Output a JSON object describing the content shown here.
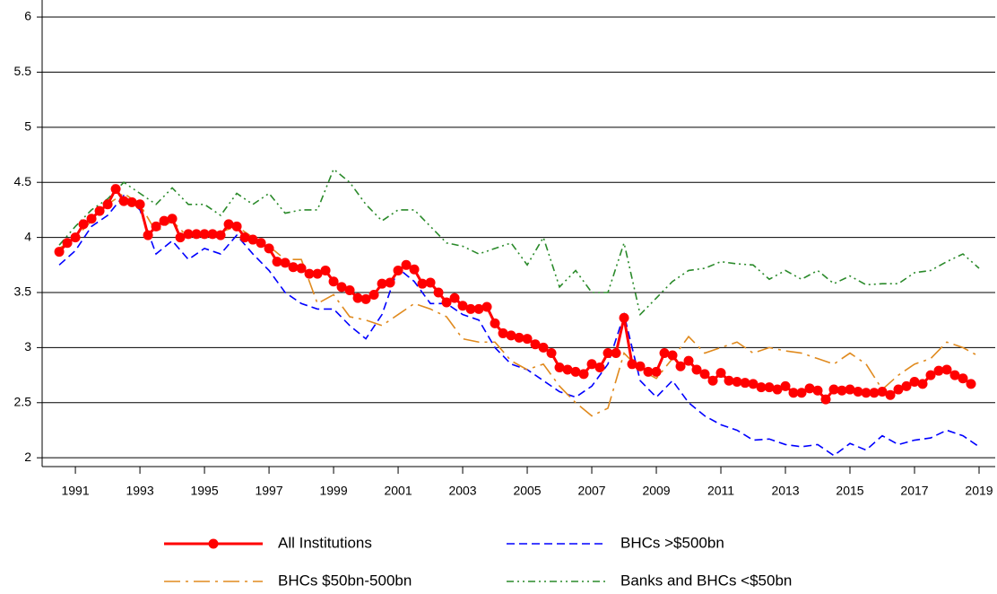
{
  "chart_data": {
    "type": "line",
    "xlim": [
      1989.97,
      2019.5
    ],
    "ylim": [
      1.92,
      6.155
    ],
    "xticks": [
      1991,
      1993,
      1995,
      1997,
      1999,
      2001,
      2003,
      2005,
      2007,
      2009,
      2011,
      2013,
      2015,
      2017,
      2019
    ],
    "yticks": [
      2,
      2.5,
      3,
      3.5,
      4,
      4.5,
      5,
      5.5,
      6
    ],
    "grid": true,
    "legend": "bottom",
    "series": [
      {
        "name": "All Institutions",
        "color": "#ff0000",
        "dash": "solid",
        "marker": "circle",
        "x": [
          1990.5,
          1990.75,
          1991,
          1991.25,
          1991.5,
          1991.75,
          1992,
          1992.25,
          1992.5,
          1992.75,
          1993,
          1993.25,
          1993.5,
          1993.75,
          1994,
          1994.25,
          1994.5,
          1994.75,
          1995,
          1995.25,
          1995.5,
          1995.75,
          1996,
          1996.25,
          1996.5,
          1996.75,
          1997,
          1997.25,
          1997.5,
          1997.75,
          1998,
          1998.25,
          1998.5,
          1998.75,
          1999,
          1999.25,
          1999.5,
          1999.75,
          2000,
          2000.25,
          2000.5,
          2000.75,
          2001,
          2001.25,
          2001.5,
          2001.75,
          2002,
          2002.25,
          2002.5,
          2002.75,
          2003,
          2003.25,
          2003.5,
          2003.75,
          2004,
          2004.25,
          2004.5,
          2004.75,
          2005,
          2005.25,
          2005.5,
          2005.75,
          2006,
          2006.25,
          2006.5,
          2006.75,
          2007,
          2007.25,
          2007.5,
          2007.75,
          2008,
          2008.25,
          2008.5,
          2008.75,
          2009,
          2009.25,
          2009.5,
          2009.75,
          2010,
          2010.25,
          2010.5,
          2010.75,
          2011,
          2011.25,
          2011.5,
          2011.75,
          2012,
          2012.25,
          2012.5,
          2012.75,
          2013,
          2013.25,
          2013.5,
          2013.75,
          2014,
          2014.25,
          2014.5,
          2014.75,
          2015,
          2015.25,
          2015.5,
          2015.75,
          2016,
          2016.25,
          2016.5,
          2016.75,
          2017,
          2017.25,
          2017.5,
          2017.75,
          2018,
          2018.25,
          2018.5,
          2018.75
        ],
        "values": [
          3.87,
          3.95,
          4.0,
          4.12,
          4.17,
          4.24,
          4.3,
          4.44,
          4.33,
          4.32,
          4.3,
          4.02,
          4.1,
          4.15,
          4.17,
          4.0,
          4.03,
          4.03,
          4.03,
          4.03,
          4.02,
          4.12,
          4.1,
          4.0,
          3.98,
          3.95,
          3.9,
          3.78,
          3.77,
          3.73,
          3.72,
          3.67,
          3.67,
          3.7,
          3.6,
          3.55,
          3.52,
          3.45,
          3.44,
          3.48,
          3.58,
          3.59,
          3.7,
          3.75,
          3.71,
          3.58,
          3.59,
          3.5,
          3.41,
          3.45,
          3.38,
          3.35,
          3.35,
          3.37,
          3.22,
          3.13,
          3.11,
          3.09,
          3.08,
          3.03,
          3.0,
          2.95,
          2.82,
          2.8,
          2.78,
          2.76,
          2.85,
          2.82,
          2.95,
          2.95,
          3.27,
          2.85,
          2.83,
          2.78,
          2.78,
          2.95,
          2.93,
          2.83,
          2.88,
          2.8,
          2.76,
          2.7,
          2.77,
          2.7,
          2.69,
          2.68,
          2.67,
          2.64,
          2.64,
          2.62,
          2.65,
          2.59,
          2.59,
          2.63,
          2.61,
          2.53,
          2.62,
          2.61,
          2.62,
          2.6,
          2.59,
          2.59,
          2.6,
          2.57,
          2.62,
          2.65,
          2.69,
          2.67,
          2.75,
          2.79,
          2.8,
          2.75,
          2.72,
          2.67
        ]
      },
      {
        "name": "BHCs >$500bn",
        "color": "#0000ff",
        "dash": "dashed",
        "x": [
          1990.5,
          1991,
          1991.5,
          1992,
          1992.5,
          1993,
          1993.5,
          1994,
          1994.5,
          1995,
          1995.5,
          1996,
          1996.5,
          1997,
          1997.5,
          1998,
          1998.5,
          1999,
          1999.5,
          2000,
          2000.5,
          2001,
          2001.5,
          2002,
          2002.5,
          2003,
          2003.5,
          2004,
          2004.5,
          2005,
          2005.5,
          2006,
          2006.5,
          2007,
          2007.5,
          2008,
          2008.5,
          2009,
          2009.5,
          2010,
          2010.5,
          2011,
          2011.5,
          2012,
          2012.5,
          2013,
          2013.5,
          2014,
          2014.5,
          2015,
          2015.5,
          2016,
          2016.5,
          2017,
          2017.5,
          2018,
          2018.5,
          2019
        ],
        "values": [
          3.75,
          3.88,
          4.1,
          4.2,
          4.38,
          4.25,
          3.85,
          3.97,
          3.8,
          3.9,
          3.85,
          4.02,
          3.85,
          3.7,
          3.5,
          3.4,
          3.35,
          3.35,
          3.2,
          3.08,
          3.3,
          3.72,
          3.6,
          3.4,
          3.4,
          3.3,
          3.25,
          3.0,
          2.85,
          2.8,
          2.7,
          2.6,
          2.55,
          2.65,
          2.85,
          3.3,
          2.7,
          2.55,
          2.7,
          2.5,
          2.38,
          2.3,
          2.25,
          2.16,
          2.17,
          2.12,
          2.1,
          2.12,
          2.02,
          2.13,
          2.07,
          2.2,
          2.12,
          2.16,
          2.18,
          2.25,
          2.2,
          2.1
        ]
      },
      {
        "name": "BHCs $50bn-500bn",
        "color": "#e08a1e",
        "dash": "dashdot",
        "x": [
          1990.5,
          1991,
          1991.5,
          1992,
          1992.5,
          1993,
          1993.5,
          1994,
          1994.5,
          1995,
          1995.5,
          1996,
          1996.5,
          1997,
          1997.5,
          1998,
          1998.5,
          1999,
          1999.5,
          2000,
          2000.5,
          2001,
          2001.5,
          2002,
          2002.5,
          2003,
          2003.5,
          2004,
          2004.5,
          2005,
          2005.5,
          2006,
          2006.5,
          2007,
          2007.5,
          2008,
          2008.5,
          2009,
          2009.5,
          2010,
          2010.5,
          2011,
          2011.5,
          2012,
          2012.5,
          2013,
          2013.5,
          2014,
          2014.5,
          2015,
          2015.5,
          2016,
          2016.5,
          2017,
          2017.5,
          2018,
          2018.5,
          2019
        ],
        "values": [
          3.9,
          4.0,
          4.15,
          4.3,
          4.4,
          4.3,
          4.05,
          4.15,
          4.0,
          4.05,
          4.05,
          4.1,
          4.0,
          3.92,
          3.8,
          3.8,
          3.4,
          3.48,
          3.28,
          3.25,
          3.2,
          3.3,
          3.4,
          3.35,
          3.28,
          3.08,
          3.05,
          3.05,
          2.88,
          2.8,
          2.85,
          2.65,
          2.5,
          2.38,
          2.45,
          2.95,
          2.8,
          2.72,
          2.9,
          3.1,
          2.95,
          3.0,
          3.05,
          2.95,
          3.0,
          2.97,
          2.95,
          2.9,
          2.85,
          2.95,
          2.85,
          2.62,
          2.75,
          2.85,
          2.9,
          3.05,
          3.0,
          2.92
        ]
      },
      {
        "name": "Banks and BHCs <$50bn",
        "color": "#2a8a2a",
        "dash": "dashdotdot",
        "x": [
          1990.5,
          1991,
          1991.5,
          1992,
          1992.5,
          1993,
          1993.5,
          1994,
          1994.5,
          1995,
          1995.5,
          1996,
          1996.5,
          1997,
          1997.5,
          1998,
          1998.5,
          1999,
          1999.5,
          2000,
          2000.5,
          2001,
          2001.5,
          2002,
          2002.5,
          2003,
          2003.5,
          2004,
          2004.5,
          2005,
          2005.5,
          2006,
          2006.5,
          2007,
          2007.5,
          2008,
          2008.5,
          2009,
          2009.5,
          2010,
          2010.5,
          2011,
          2011.5,
          2012,
          2012.5,
          2013,
          2013.5,
          2014,
          2014.5,
          2015,
          2015.5,
          2016,
          2016.5,
          2017,
          2017.5,
          2018,
          2018.5,
          2019
        ],
        "values": [
          3.93,
          4.1,
          4.25,
          4.35,
          4.5,
          4.4,
          4.3,
          4.45,
          4.3,
          4.3,
          4.2,
          4.4,
          4.3,
          4.4,
          4.22,
          4.25,
          4.25,
          4.62,
          4.5,
          4.3,
          4.15,
          4.25,
          4.25,
          4.1,
          3.95,
          3.92,
          3.85,
          3.9,
          3.95,
          3.75,
          4.0,
          3.55,
          3.7,
          3.5,
          3.5,
          3.95,
          3.3,
          3.45,
          3.6,
          3.7,
          3.72,
          3.78,
          3.76,
          3.75,
          3.62,
          3.7,
          3.62,
          3.7,
          3.58,
          3.65,
          3.57,
          3.58,
          3.58,
          3.68,
          3.7,
          3.78,
          3.85,
          3.72
        ]
      }
    ]
  }
}
